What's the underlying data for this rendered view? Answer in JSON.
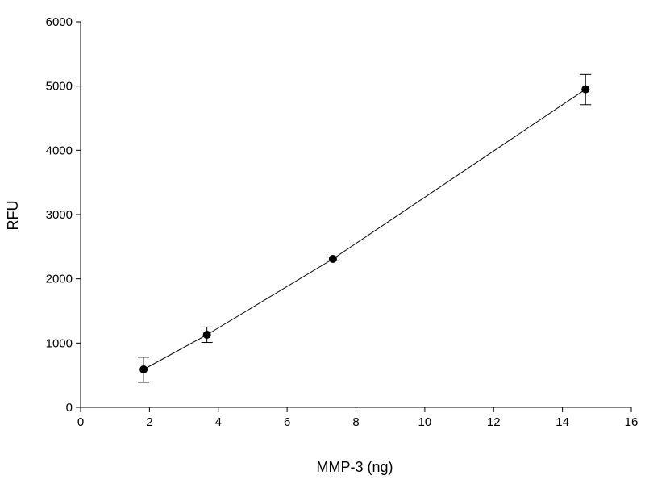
{
  "chart_data": {
    "type": "scatter",
    "title": "",
    "xlabel": "MMP-3 (ng)",
    "ylabel": "RFU",
    "xlim": [
      0,
      16
    ],
    "ylim": [
      0,
      6000
    ],
    "x_ticks": [
      "0",
      "2",
      "4",
      "6",
      "8",
      "10",
      "12",
      "14",
      "16"
    ],
    "y_ticks": [
      "0",
      "1000",
      "2000",
      "3000",
      "4000",
      "5000",
      "6000"
    ],
    "grid": false,
    "legend": "none",
    "series": [
      {
        "points": [
          {
            "x": 1.83,
            "y": 590,
            "err_low": 390,
            "err_high": 780
          },
          {
            "x": 3.67,
            "y": 1130,
            "err_low": 1010,
            "err_high": 1250
          },
          {
            "x": 7.33,
            "y": 2310,
            "err_low": 2280,
            "err_high": 2340
          },
          {
            "x": 14.67,
            "y": 4950,
            "err_low": 4710,
            "err_high": 5180
          }
        ],
        "line": "connected"
      }
    ],
    "colors": {
      "marker": "#000000",
      "line": "#000000"
    }
  }
}
